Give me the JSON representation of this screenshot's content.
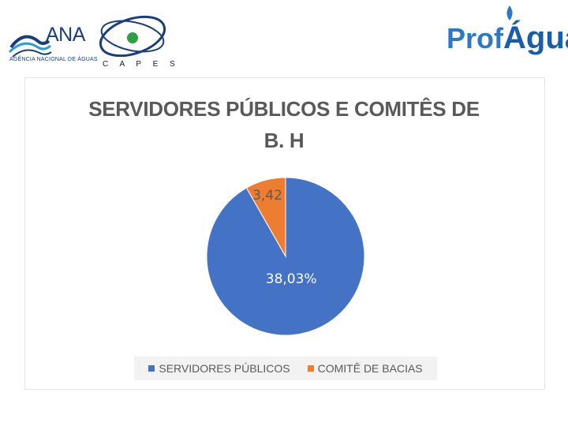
{
  "logos": {
    "ana_name": "ANA",
    "ana_subtitle": "AGÊNCIA NACIONAL DE ÁGUAS",
    "capes_name": "C A P E S",
    "profagua_part1": "Prof",
    "profagua_part2": "Água"
  },
  "colors": {
    "servidores": "#4472c4",
    "comite": "#ed7d31",
    "label_text": "#ffffff",
    "label_comite": "#5a5a5a"
  },
  "chart_data": {
    "type": "pie",
    "title_line1": "SERVIDORES PÚBLICOS E COMITÊS DE",
    "title_line2": "B. H",
    "slices": [
      {
        "name": "SERVIDORES PÚBLICOS",
        "value": 38.03,
        "label": "38,03%"
      },
      {
        "name": "COMITÊ DE BACIAS",
        "value": 3.42,
        "label": "3,42"
      }
    ],
    "legend_position": "bottom"
  }
}
